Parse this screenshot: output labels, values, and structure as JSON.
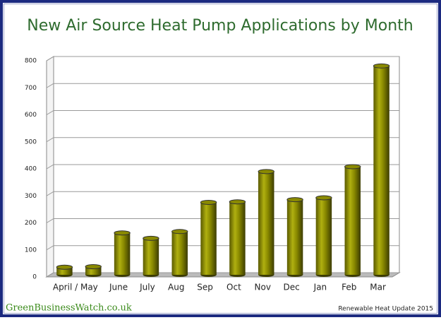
{
  "chart_data": {
    "type": "bar",
    "title": "New Air Source Heat Pump Applications by Month",
    "categories": [
      "April / May",
      null,
      "June",
      "July",
      "Aug",
      "Sep",
      "Oct",
      "Nov",
      "Dec",
      "Jan",
      "Feb",
      "Mar"
    ],
    "values": [
      28,
      30,
      155,
      135,
      160,
      268,
      270,
      382,
      278,
      285,
      400,
      773
    ],
    "color": "#8a8a00",
    "ylim": [
      0,
      800
    ],
    "yticks": [
      0,
      100,
      200,
      300,
      400,
      500,
      600,
      700,
      800
    ],
    "grid": true
  },
  "footer": {
    "site": "GreenBusinessWatch.co.uk",
    "note": "Renewable Heat Update 2015"
  }
}
